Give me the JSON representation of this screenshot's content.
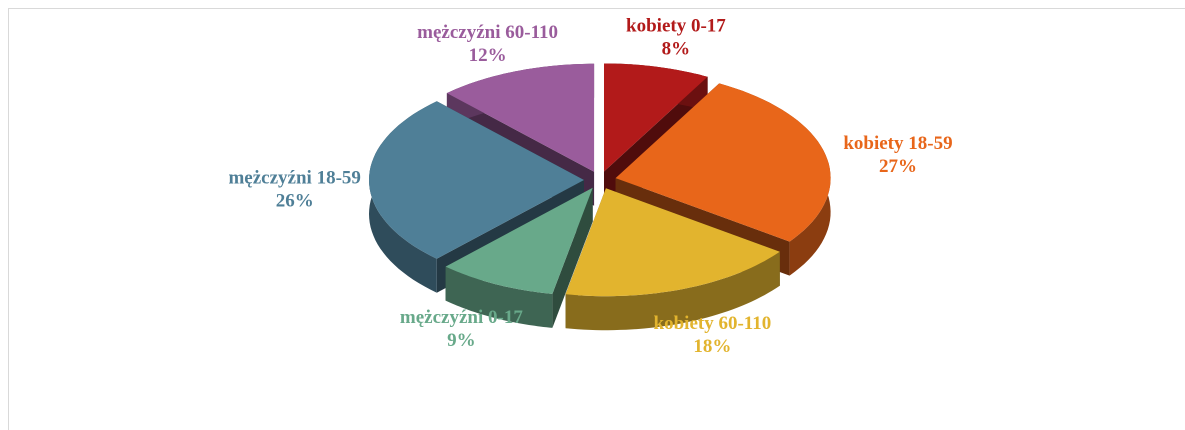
{
  "chart_data": {
    "type": "pie",
    "categories": [
      "kobiety 0-17",
      "kobiety 18-59",
      "kobiety 60-110",
      "mężczyźni 0-17",
      "mężczyźni 18-59",
      "mężczyźni 60-110"
    ],
    "values": [
      8,
      27,
      18,
      9,
      26,
      12
    ],
    "value_labels": [
      "8%",
      "27%",
      "18%",
      "9%",
      "26%",
      "12%"
    ],
    "colors": [
      "#b21a1a",
      "#e8661a",
      "#e2b42e",
      "#68a98a",
      "#4f7f97",
      "#9a5c9c"
    ]
  }
}
